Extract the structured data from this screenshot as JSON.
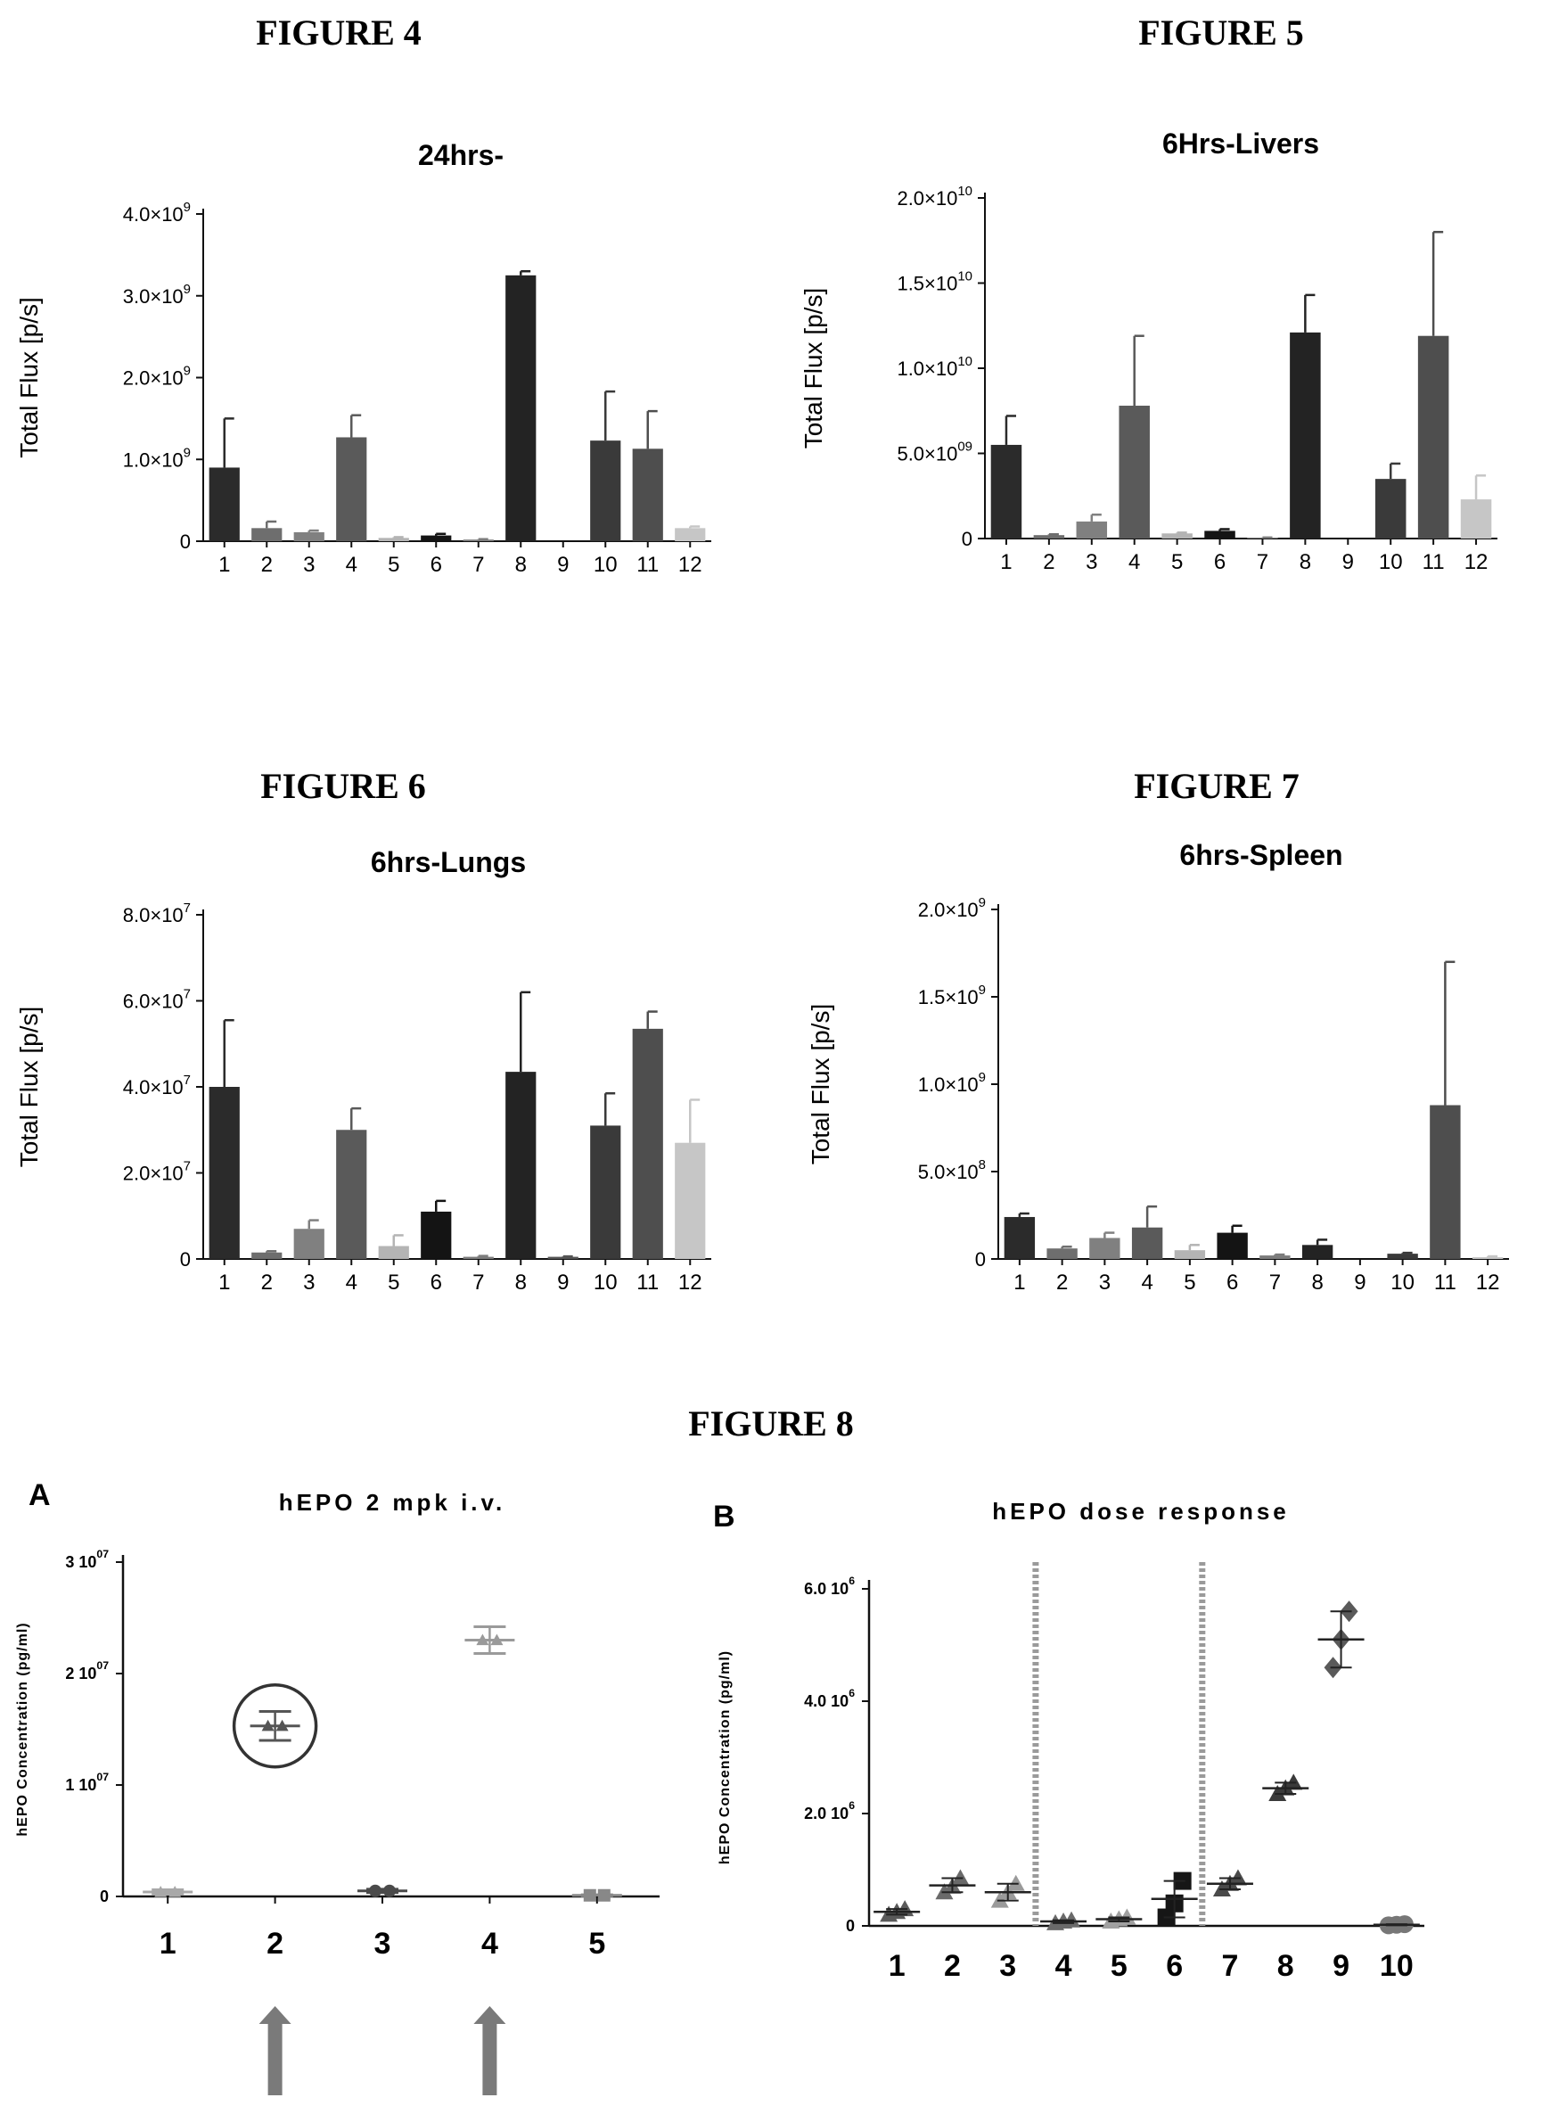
{
  "figures": [
    {
      "id": "fig4",
      "label": "FIGURE 4"
    },
    {
      "id": "fig5",
      "label": "FIGURE 5"
    },
    {
      "id": "fig6",
      "label": "FIGURE 6"
    },
    {
      "id": "fig7",
      "label": "FIGURE 7"
    },
    {
      "id": "fig8",
      "label": "FIGURE 8"
    }
  ],
  "chart_data": [
    {
      "type": "bar",
      "title": "24hrs-",
      "ylabel": "Total Flux [p/s]",
      "ylim": [
        0,
        4000000000
      ],
      "yticks": [
        0,
        1000000000,
        2000000000,
        3000000000,
        4000000000
      ],
      "ytick_labels": [
        "0",
        "1.0×10",
        "2.0×10",
        "3.0×10",
        "4.0×10"
      ],
      "ytick_exps": [
        "",
        "9",
        "9",
        "9",
        "9"
      ],
      "categories": [
        "1",
        "2",
        "3",
        "4",
        "5",
        "6",
        "7",
        "8",
        "9",
        "10",
        "11",
        "12"
      ],
      "values": [
        900000000,
        160000000,
        110000000,
        1270000000,
        40000000,
        70000000,
        20000000,
        3250000000,
        0,
        1230000000,
        1130000000,
        160000000
      ],
      "errors": [
        600000000,
        80000000,
        20000000,
        270000000,
        10000000,
        20000000,
        5000000,
        50000000,
        0,
        600000000,
        460000000,
        20000000
      ],
      "colors": [
        "#2b2b2b",
        "#6e6e6e",
        "#808080",
        "#5a5a5a",
        "#b4b4b4",
        "#141414",
        "#7c7c7c",
        "#232323",
        "#555555",
        "#3a3a3a",
        "#4e4e4e",
        "#c6c6c6"
      ]
    },
    {
      "type": "bar",
      "title": "6Hrs-Livers",
      "ylabel": "Total Flux [p/s]",
      "ylim": [
        0,
        20000000000
      ],
      "yticks": [
        0,
        5000000000,
        10000000000,
        15000000000,
        20000000000
      ],
      "ytick_labels": [
        "0",
        "5.0×10",
        "1.0×10",
        "1.5×10",
        "2.0×10"
      ],
      "ytick_exps": [
        "",
        "09",
        "10",
        "10",
        "10"
      ],
      "categories": [
        "1",
        "2",
        "3",
        "4",
        "5",
        "6",
        "7",
        "8",
        "9",
        "10",
        "11",
        "12"
      ],
      "values": [
        5500000000,
        200000000,
        1000000000,
        7800000000,
        300000000,
        450000000,
        50000000,
        12100000000,
        0,
        3500000000,
        11900000000,
        2300000000
      ],
      "errors": [
        1700000000,
        50000000,
        400000000,
        4100000000,
        50000000,
        100000000,
        10000000,
        2200000000,
        0,
        900000000,
        6100000000,
        1400000000
      ],
      "colors": [
        "#2b2b2b",
        "#6e6e6e",
        "#808080",
        "#5a5a5a",
        "#b4b4b4",
        "#141414",
        "#7c7c7c",
        "#232323",
        "#555555",
        "#3a3a3a",
        "#4e4e4e",
        "#c6c6c6"
      ]
    },
    {
      "type": "bar",
      "title": "6hrs-Lungs",
      "ylabel": "Total Flux [p/s]",
      "ylim": [
        0,
        80000000
      ],
      "yticks": [
        0,
        20000000,
        40000000,
        60000000,
        80000000
      ],
      "ytick_labels": [
        "0",
        "2.0×10",
        "4.0×10",
        "6.0×10",
        "8.0×10"
      ],
      "ytick_exps": [
        "",
        "7",
        "7",
        "7",
        "7"
      ],
      "categories": [
        "1",
        "2",
        "3",
        "4",
        "5",
        "6",
        "7",
        "8",
        "9",
        "10",
        "11",
        "12"
      ],
      "values": [
        40000000,
        1500000,
        7000000,
        30000000,
        3000000,
        11000000,
        500000,
        43500000,
        500000,
        31000000,
        53500000,
        27000000
      ],
      "errors": [
        15500000,
        300000,
        2000000,
        5000000,
        2500000,
        2500000,
        200000,
        18500000,
        100000,
        7500000,
        4000000,
        10000000
      ],
      "colors": [
        "#2b2b2b",
        "#6e6e6e",
        "#808080",
        "#5a5a5a",
        "#b4b4b4",
        "#141414",
        "#7c7c7c",
        "#232323",
        "#555555",
        "#3a3a3a",
        "#4e4e4e",
        "#c6c6c6"
      ]
    },
    {
      "type": "bar",
      "title": "6hrs-Spleen",
      "ylabel": "Total Flux [p/s]",
      "ylim": [
        0,
        2000000000
      ],
      "yticks": [
        0,
        500000000,
        1000000000,
        1500000000,
        2000000000
      ],
      "ytick_labels": [
        "0",
        "5.0×10",
        "1.0×10",
        "1.5×10",
        "2.0×10"
      ],
      "ytick_exps": [
        "",
        "8",
        "9",
        "9",
        "9"
      ],
      "categories": [
        "1",
        "2",
        "3",
        "4",
        "5",
        "6",
        "7",
        "8",
        "9",
        "10",
        "11",
        "12"
      ],
      "values": [
        240000000,
        60000000,
        120000000,
        180000000,
        50000000,
        150000000,
        20000000,
        80000000,
        0,
        30000000,
        880000000,
        10000000
      ],
      "errors": [
        20000000,
        10000000,
        30000000,
        120000000,
        30000000,
        40000000,
        5000000,
        30000000,
        0,
        5000000,
        820000000,
        5000000
      ],
      "colors": [
        "#2b2b2b",
        "#6e6e6e",
        "#808080",
        "#5a5a5a",
        "#b4b4b4",
        "#141414",
        "#7c7c7c",
        "#232323",
        "#555555",
        "#3a3a3a",
        "#4e4e4e",
        "#c6c6c6"
      ]
    },
    {
      "type": "scatter",
      "panel": "A",
      "title": "hEPO 2 mpk i.v.",
      "ylabel": "hEPO Concentration (pg/ml)",
      "ylim": [
        0,
        30000000
      ],
      "yticks": [
        0,
        10000000,
        20000000,
        30000000
      ],
      "ytick_labels": [
        "0",
        "1  10",
        "2  10",
        "3  10"
      ],
      "ytick_exps": [
        "",
        "07",
        "07",
        "07"
      ],
      "categories": [
        "1",
        "2",
        "3",
        "4",
        "5"
      ],
      "mean": [
        400000,
        15300000,
        500000,
        23000000,
        100000
      ],
      "error": [
        200000,
        1300000,
        150000,
        1200000,
        50000
      ],
      "colors": [
        "#a8a8a8",
        "#555555",
        "#4a4a4a",
        "#9a9a9a",
        "#888888"
      ],
      "markers": [
        "triangle",
        "triangle",
        "circle",
        "triangle",
        "square"
      ],
      "circled_category": "2",
      "arrow_categories": [
        "2",
        "4"
      ]
    },
    {
      "type": "scatter",
      "panel": "B",
      "title": "hEPO dose response",
      "ylabel": "hEPO Concentration (pg/ml)",
      "ylim": [
        0,
        6000000
      ],
      "yticks": [
        0,
        2000000,
        4000000,
        6000000
      ],
      "ytick_labels": [
        "0",
        "2.0  10",
        "4.0  10",
        "6.0  10"
      ],
      "ytick_exps": [
        "",
        "6",
        "6",
        "6"
      ],
      "categories": [
        "1",
        "2",
        "3",
        "4",
        "5",
        "6",
        "7",
        "8",
        "9",
        "10"
      ],
      "points": [
        [
          200000,
          250000,
          300000
        ],
        [
          600000,
          700000,
          850000
        ],
        [
          450000,
          600000,
          750000
        ],
        [
          50000,
          80000,
          100000
        ],
        [
          80000,
          120000,
          150000
        ],
        [
          150000,
          400000,
          800000
        ],
        [
          650000,
          750000,
          850000
        ],
        [
          2350000,
          2450000,
          2550000
        ],
        [
          4600000,
          5100000,
          5600000
        ],
        [
          10000,
          20000,
          30000
        ]
      ],
      "mean": [
        250000,
        720000,
        600000,
        80000,
        120000,
        480000,
        750000,
        2450000,
        5100000,
        20000
      ],
      "colors": [
        "#5a5a5a",
        "#6a6a6a",
        "#9a9a9a",
        "#6a6a6a",
        "#a0a0a0",
        "#161616",
        "#4a4a4a",
        "#3a3a3a",
        "#5a5a5a",
        "#777777"
      ],
      "markers": [
        "triangle",
        "triangle",
        "triangle",
        "triangle",
        "triangle",
        "square",
        "triangle",
        "triangle",
        "diamond",
        "circle"
      ],
      "separators_after": [
        "3",
        "6"
      ]
    }
  ]
}
